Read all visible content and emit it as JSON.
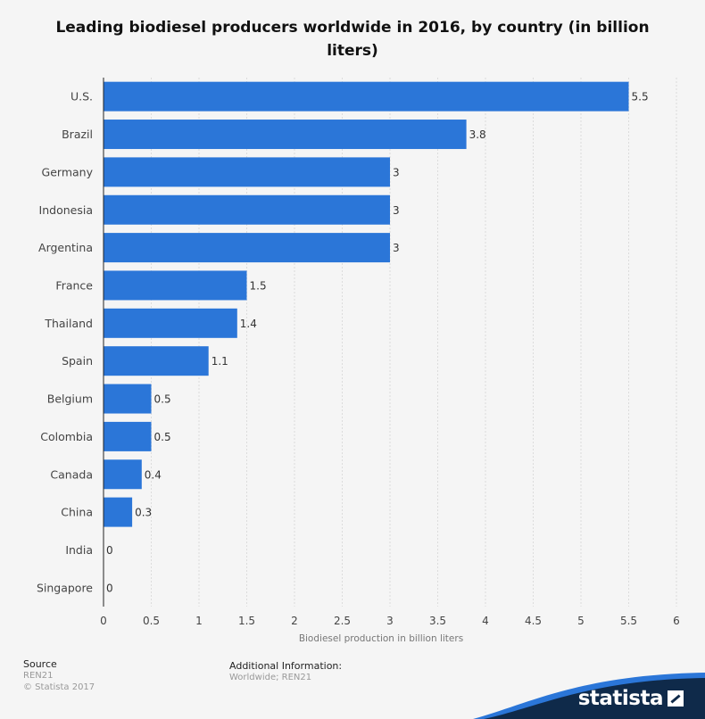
{
  "chart_data": {
    "type": "bar",
    "orientation": "horizontal",
    "title": "Leading biodiesel producers worldwide in 2016, by country (in billion liters)",
    "title_line1": "Leading biodiesel producers worldwide in 2016, by country (in billion",
    "title_line2": "liters)",
    "categories": [
      "U.S.",
      "Brazil",
      "Germany",
      "Indonesia",
      "Argentina",
      "France",
      "Thailand",
      "Spain",
      "Belgium",
      "Colombia",
      "Canada",
      "China",
      "India",
      "Singapore"
    ],
    "values": [
      5.5,
      3.8,
      3,
      3,
      3,
      1.5,
      1.4,
      1.1,
      0.5,
      0.5,
      0.4,
      0.3,
      0,
      0
    ],
    "value_labels": [
      "5.5",
      "3.8",
      "3",
      "3",
      "3",
      "1.5",
      "1.4",
      "1.1",
      "0.5",
      "0.5",
      "0.4",
      "0.3",
      "0",
      "0"
    ],
    "xlabel": "Biodiesel production in billion liters",
    "xlim": [
      0,
      6
    ],
    "xticks": [
      "0",
      "0.5",
      "1",
      "1.5",
      "2",
      "2.5",
      "3",
      "3.5",
      "4",
      "4.5",
      "5",
      "5.5",
      "6"
    ],
    "grid": true,
    "bar_color": "#2b76d8"
  },
  "footer": {
    "source_heading": "Source",
    "source_name": "REN21",
    "copyright": "© Statista 2017",
    "additional_heading": "Additional Information:",
    "additional_text": "Worldwide; REN21"
  },
  "brand": {
    "name": "statista",
    "color": "#0f2a4a",
    "accent": "#2b76d8"
  }
}
